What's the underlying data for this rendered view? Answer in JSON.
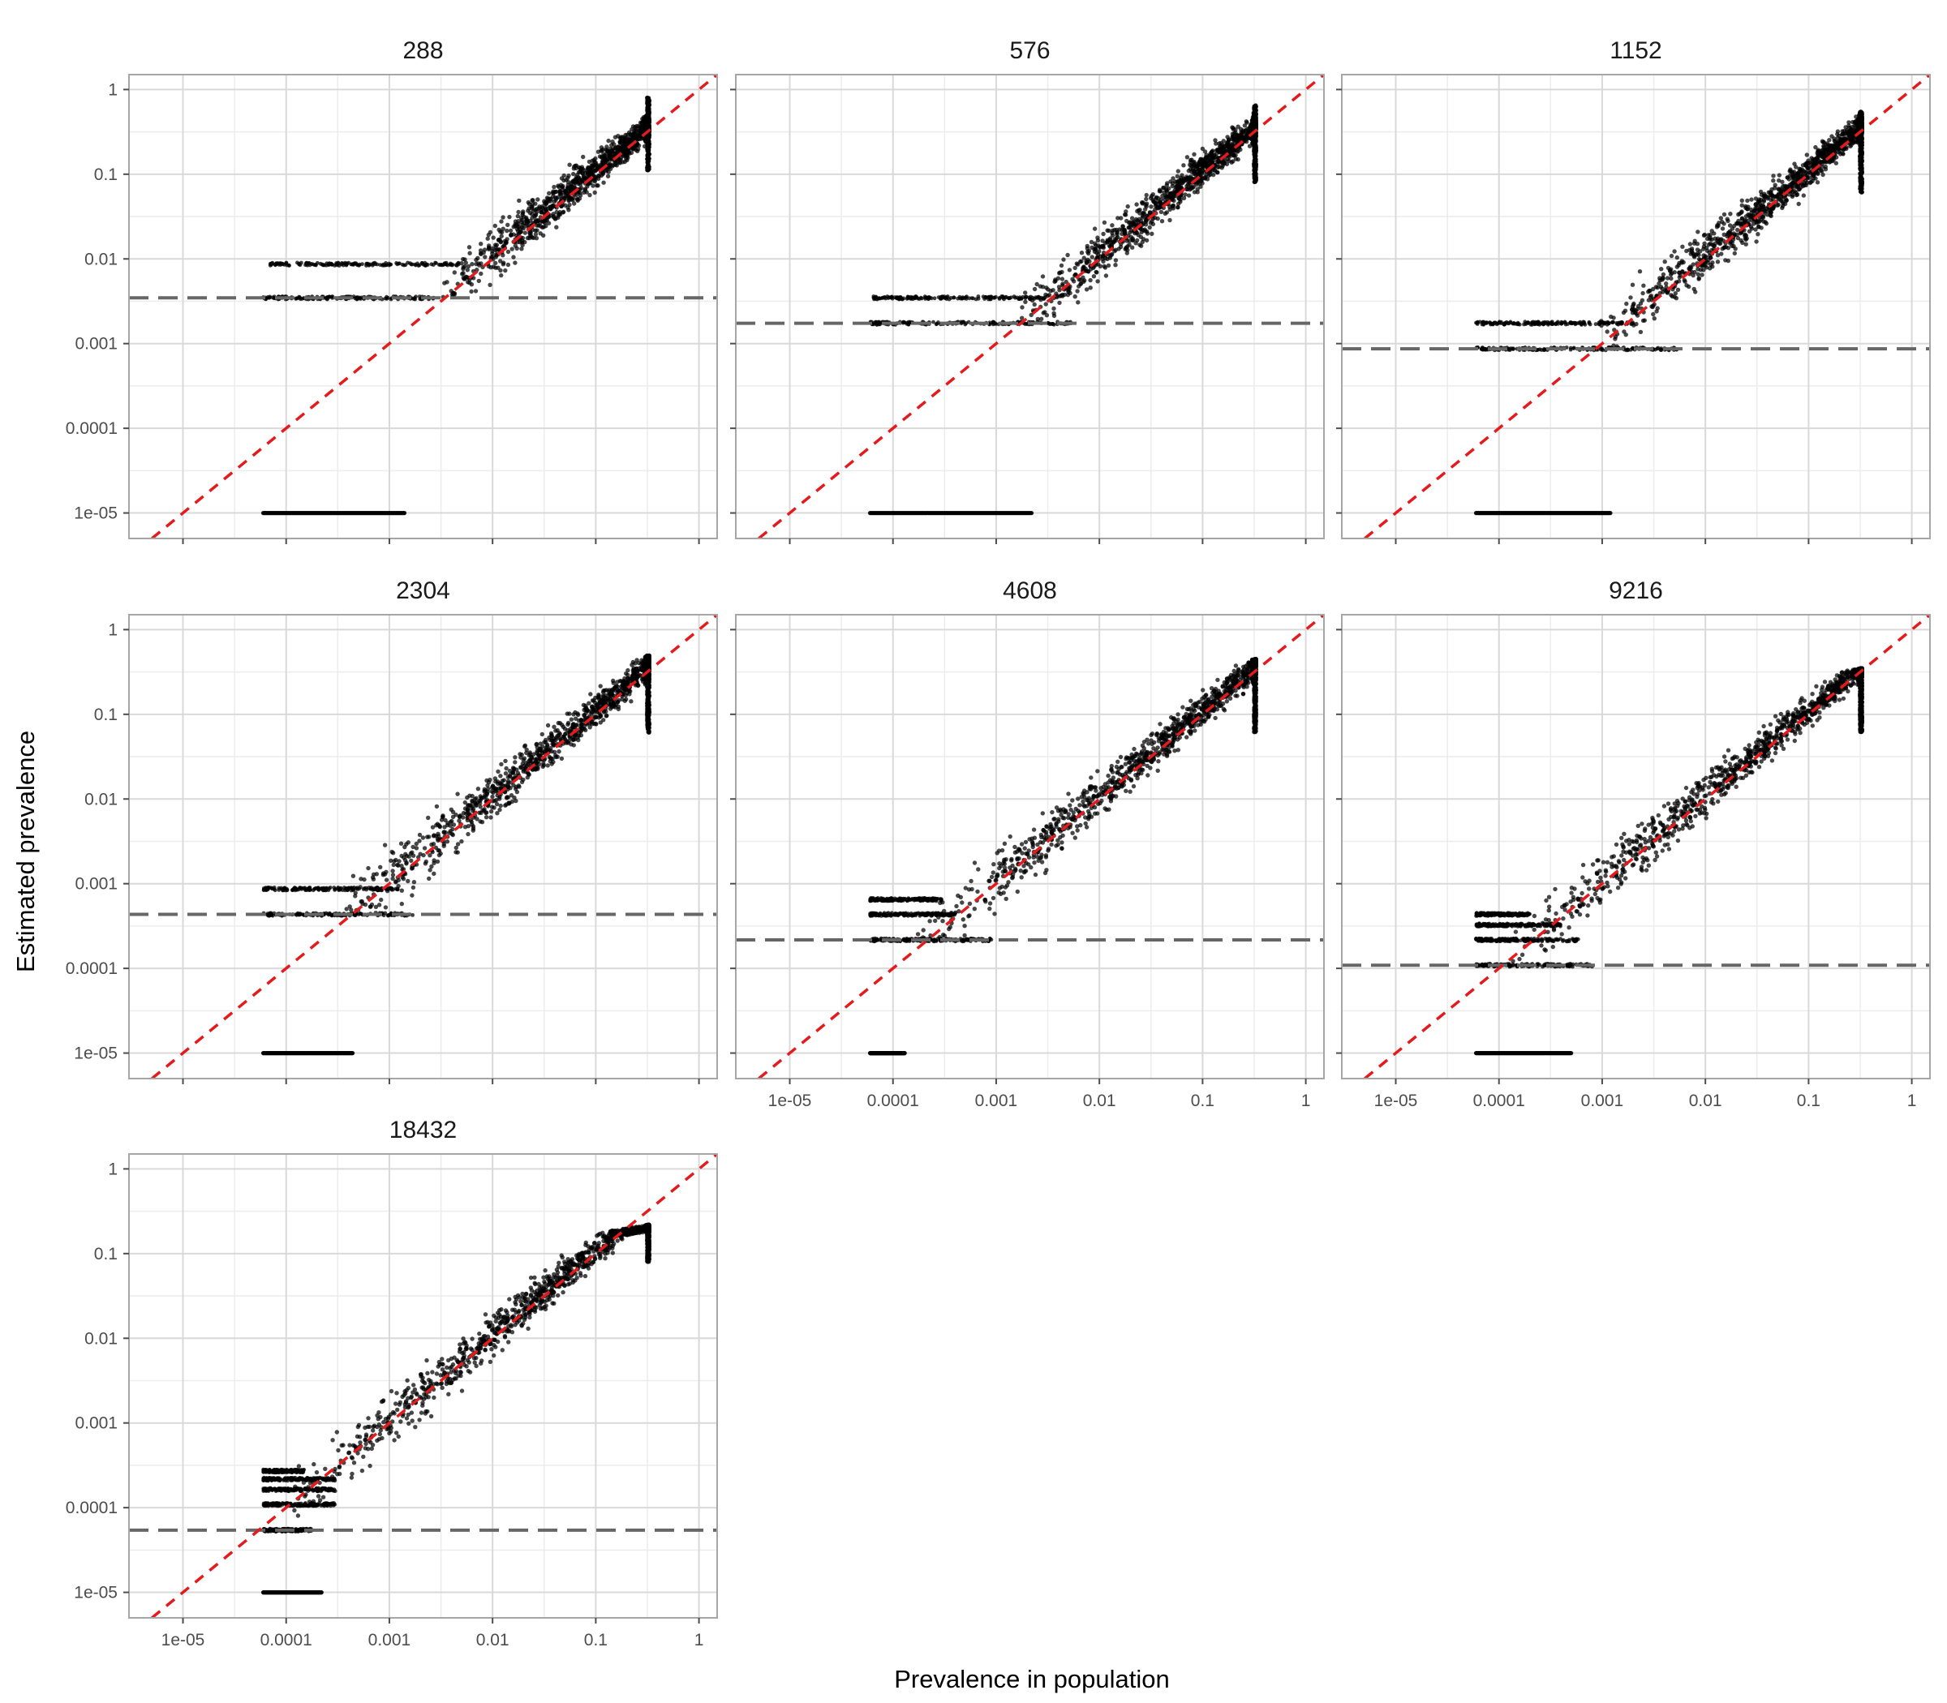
{
  "figure": {
    "xlabel": "Prevalence in population",
    "ylabel": "Estimated prevalence"
  },
  "colors": {
    "points": "#000000",
    "identity_line": "#e41a1c",
    "threshold_line": "#666666",
    "grid_major": "#d9d9d9",
    "grid_minor": "#ececec",
    "panel_border": "#a6a6a6",
    "tick_text": "#4d4d4d"
  },
  "chart_data": {
    "type": "scatter",
    "layout": "facet grid, 3 columns",
    "x_scale": "log10",
    "y_scale": "log10",
    "xlim": [
      3e-06,
      1.5
    ],
    "ylim": [
      5e-06,
      1.5
    ],
    "x_ticks": [
      1e-05,
      0.0001,
      0.001,
      0.01,
      0.1,
      1
    ],
    "x_tick_labels": [
      "1e-05",
      "0.0001",
      "0.001",
      "0.01",
      "0.1",
      "1"
    ],
    "y_ticks": [
      1e-05,
      0.0001,
      0.001,
      0.01,
      0.1,
      1
    ],
    "y_tick_labels": [
      "1e-05",
      "0.0001",
      "0.001",
      "0.01",
      "0.1",
      "1"
    ],
    "grid": true,
    "x_population_range": [
      6e-05,
      0.33
    ],
    "reference_lines": [
      {
        "kind": "identity",
        "style": "dashed",
        "equation": "y = x",
        "color": "#e41a1c"
      }
    ],
    "panels": [
      {
        "title": "288",
        "threshold_line_y": 0.00347,
        "zero_floor": {
          "y": 1e-05,
          "x_range": [
            6e-05,
            0.0014
          ]
        },
        "bands": [
          {
            "y": 0.00347,
            "x_range": [
              6e-05,
              0.0027
            ]
          },
          {
            "y": 0.00868,
            "x_range": [
              7e-05,
              0.0047
            ]
          }
        ],
        "cluster": {
          "x_start": 0.003,
          "x_end": 0.33,
          "y_center_end": 0.25,
          "y_spread_at_top": [
            0.11,
            0.8
          ]
        }
      },
      {
        "title": "576",
        "threshold_line_y": 0.00174,
        "zero_floor": {
          "y": 1e-05,
          "x_range": [
            6e-05,
            0.0022
          ]
        },
        "bands": [
          {
            "y": 0.00174,
            "x_range": [
              6e-05,
              0.0055
            ]
          },
          {
            "y": 0.00347,
            "x_range": [
              6e-05,
              0.003
            ]
          }
        ],
        "cluster": {
          "x_start": 0.0015,
          "x_end": 0.33,
          "y_center_end": 0.25,
          "y_spread_at_top": [
            0.08,
            0.65
          ]
        }
      },
      {
        "title": "1152",
        "threshold_line_y": 0.000868,
        "zero_floor": {
          "y": 1e-05,
          "x_range": [
            6e-05,
            0.0012
          ]
        },
        "bands": [
          {
            "y": 0.000868,
            "x_range": [
              6e-05,
              0.0054
            ]
          },
          {
            "y": 0.00174,
            "x_range": [
              6e-05,
              0.002
            ]
          }
        ],
        "cluster": {
          "x_start": 0.0008,
          "x_end": 0.33,
          "y_center_end": 0.25,
          "y_spread_at_top": [
            0.06,
            0.55
          ]
        }
      },
      {
        "title": "2304",
        "threshold_line_y": 0.000434,
        "zero_floor": {
          "y": 1e-05,
          "x_range": [
            6e-05,
            0.00044
          ]
        },
        "bands": [
          {
            "y": 0.000434,
            "x_range": [
              6e-05,
              0.0017
            ]
          },
          {
            "y": 0.000868,
            "x_range": [
              6e-05,
              0.0012
            ]
          }
        ],
        "cluster": {
          "x_start": 0.0003,
          "x_end": 0.33,
          "y_center_end": 0.25,
          "y_spread_at_top": [
            0.06,
            0.5
          ]
        }
      },
      {
        "title": "4608",
        "threshold_line_y": 0.000217,
        "zero_floor": {
          "y": 1e-05,
          "x_range": [
            6e-05,
            0.00013
          ]
        },
        "bands": [
          {
            "y": 0.000217,
            "x_range": [
              6e-05,
              0.0009
            ]
          },
          {
            "y": 0.000434,
            "x_range": [
              6e-05,
              0.0004
            ]
          },
          {
            "y": 0.000651,
            "x_range": [
              6e-05,
              0.0003
            ]
          }
        ],
        "cluster": {
          "x_start": 0.00015,
          "x_end": 0.33,
          "y_center_end": 0.25,
          "y_spread_at_top": [
            0.06,
            0.45
          ]
        }
      },
      {
        "title": "9216",
        "threshold_line_y": 0.000109,
        "zero_floor": {
          "y": 1e-05,
          "x_range": [
            6e-05,
            0.0005
          ]
        },
        "bands": [
          {
            "y": 0.000109,
            "x_range": [
              6e-05,
              0.0008
            ]
          },
          {
            "y": 0.000217,
            "x_range": [
              6e-05,
              0.0006
            ]
          },
          {
            "y": 0.000326,
            "x_range": [
              6e-05,
              0.0004
            ]
          },
          {
            "y": 0.000434,
            "x_range": [
              6e-05,
              0.0002
            ]
          }
        ],
        "cluster": {
          "x_start": 0.00012,
          "x_end": 0.33,
          "y_center_end": 0.2,
          "y_spread_at_top": [
            0.06,
            0.35
          ]
        }
      },
      {
        "title": "18432",
        "threshold_line_y": 5.43e-05,
        "zero_floor": {
          "y": 1e-05,
          "x_range": [
            6e-05,
            0.00022
          ]
        },
        "bands": [
          {
            "y": 5.43e-05,
            "x_range": [
              6e-05,
              0.00018
            ]
          },
          {
            "y": 0.000109,
            "x_range": [
              6e-05,
              0.0003
            ]
          },
          {
            "y": 0.000163,
            "x_range": [
              6e-05,
              0.0003
            ]
          },
          {
            "y": 0.000217,
            "x_range": [
              6e-05,
              0.0003
            ]
          },
          {
            "y": 0.000271,
            "x_range": [
              6e-05,
              0.00015
            ]
          }
        ],
        "cluster": {
          "x_start": 0.0001,
          "x_end": 0.33,
          "y_center_end": 0.17,
          "y_spread_at_top": [
            0.08,
            0.22
          ]
        }
      }
    ]
  }
}
